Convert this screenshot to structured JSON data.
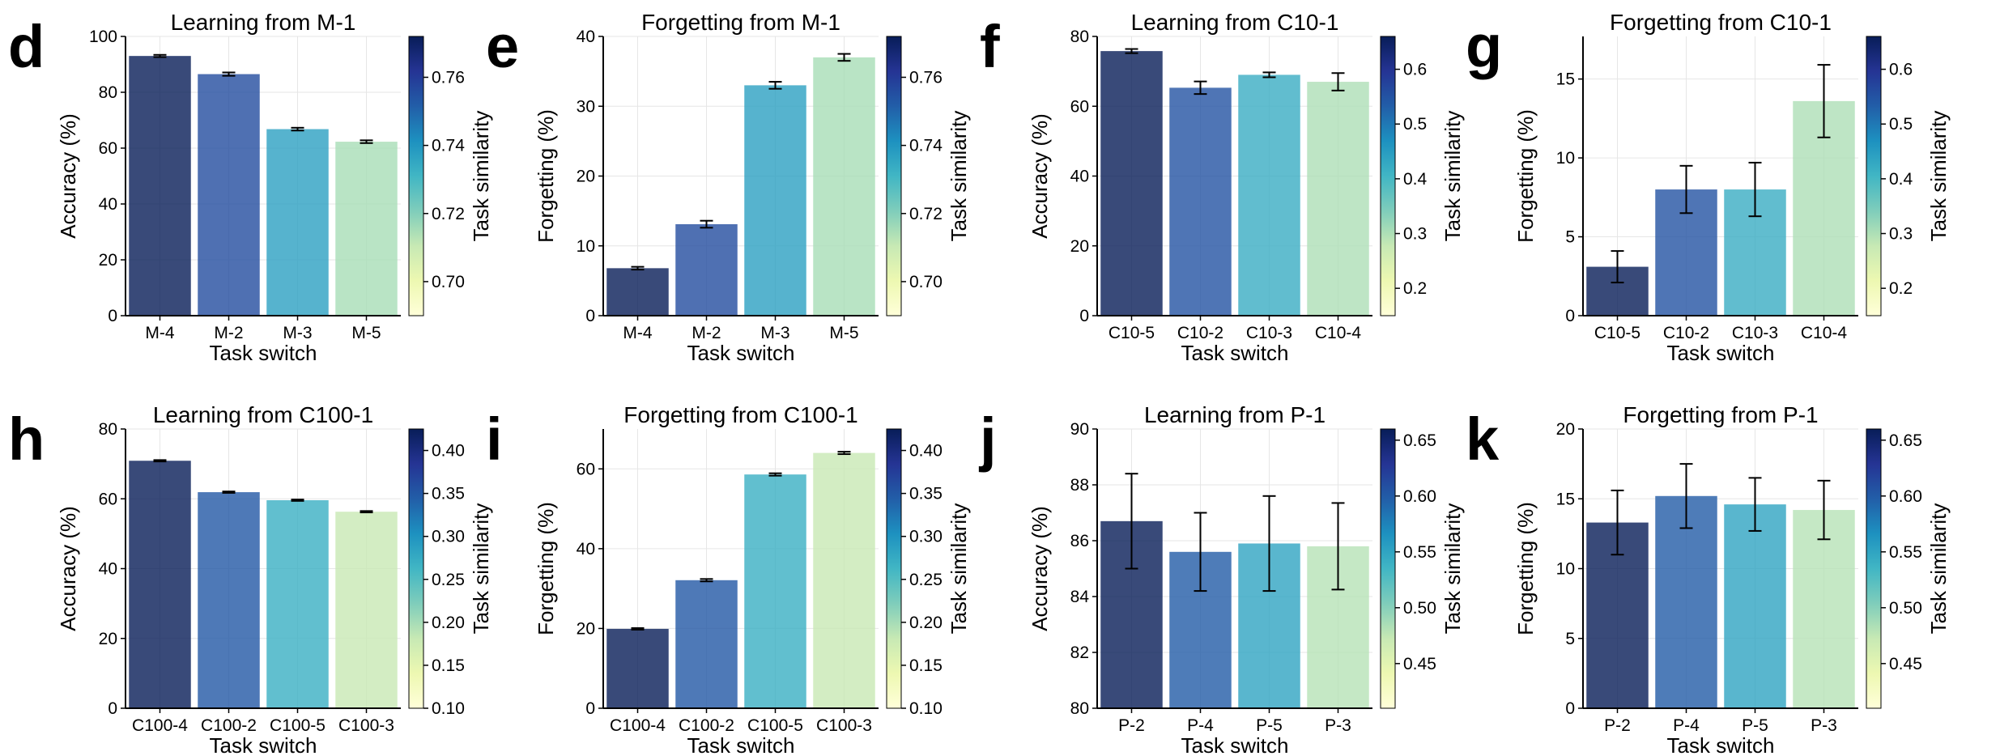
{
  "chart_data": [
    {
      "panel": "d",
      "type": "bar",
      "title": "Learning from M-1",
      "xlabel": "Task switch",
      "ylabel": "Accuracy (%)",
      "categories": [
        "M-4",
        "M-2",
        "M-3",
        "M-5"
      ],
      "values": [
        93,
        86.5,
        66.8,
        62.3
      ],
      "errors": [
        0.4,
        0.6,
        0.5,
        0.5
      ],
      "ylim": [
        0,
        100
      ],
      "yticks": [
        0,
        20,
        40,
        60,
        80,
        100
      ],
      "similarity": [
        0.772,
        0.756,
        0.737,
        0.715
      ],
      "colorbar": {
        "label": "Task similarity",
        "range": [
          0.69,
          0.772
        ],
        "ticks": [
          0.7,
          0.72,
          0.74,
          0.76
        ],
        "tick_labels": [
          "0.70",
          "0.72",
          "0.74",
          "0.76"
        ]
      }
    },
    {
      "panel": "e",
      "type": "bar",
      "title": "Forgetting from M-1",
      "xlabel": "Task switch",
      "ylabel": "Forgetting (%)",
      "categories": [
        "M-4",
        "M-2",
        "M-3",
        "M-5"
      ],
      "values": [
        6.8,
        13.1,
        33.0,
        37.0
      ],
      "errors": [
        0.2,
        0.5,
        0.5,
        0.5
      ],
      "ylim": [
        0,
        40
      ],
      "yticks": [
        0,
        10,
        20,
        30,
        40
      ],
      "similarity": [
        0.772,
        0.756,
        0.737,
        0.715
      ],
      "colorbar": {
        "label": "Task similarity",
        "range": [
          0.69,
          0.772
        ],
        "ticks": [
          0.7,
          0.72,
          0.74,
          0.76
        ],
        "tick_labels": [
          "0.70",
          "0.72",
          "0.74",
          "0.76"
        ]
      }
    },
    {
      "panel": "f",
      "type": "bar",
      "title": "Learning from C10-1",
      "xlabel": "Task switch",
      "ylabel": "Accuracy (%)",
      "categories": [
        "C10-5",
        "C10-2",
        "C10-3",
        "C10-4"
      ],
      "values": [
        75.8,
        65.3,
        69.0,
        67.0
      ],
      "errors": [
        0.6,
        1.8,
        0.7,
        2.5
      ],
      "ylim": [
        0,
        80
      ],
      "yticks": [
        0,
        20,
        40,
        60,
        80
      ],
      "similarity": [
        0.66,
        0.55,
        0.42,
        0.3
      ],
      "colorbar": {
        "label": "Task similarity",
        "range": [
          0.15,
          0.66
        ],
        "ticks": [
          0.2,
          0.3,
          0.4,
          0.5,
          0.6
        ],
        "tick_labels": [
          "0.2",
          "0.3",
          "0.4",
          "0.5",
          "0.6"
        ]
      }
    },
    {
      "panel": "g",
      "type": "bar",
      "title": "Forgetting from C10-1",
      "xlabel": "Task switch",
      "ylabel": "Forgetting (%)",
      "categories": [
        "C10-5",
        "C10-2",
        "C10-3",
        "C10-4"
      ],
      "values": [
        3.1,
        8.0,
        8.0,
        13.6
      ],
      "errors": [
        1.0,
        1.5,
        1.7,
        2.3
      ],
      "ylim": [
        0,
        17.7
      ],
      "yticks": [
        0,
        5,
        10,
        15
      ],
      "similarity": [
        0.66,
        0.55,
        0.42,
        0.3
      ],
      "colorbar": {
        "label": "Task similarity",
        "range": [
          0.15,
          0.66
        ],
        "ticks": [
          0.2,
          0.3,
          0.4,
          0.5,
          0.6
        ],
        "tick_labels": [
          "0.2",
          "0.3",
          "0.4",
          "0.5",
          "0.6"
        ]
      }
    },
    {
      "panel": "h",
      "type": "bar",
      "title": "Learning from C100-1",
      "xlabel": "Task switch",
      "ylabel": "Accuracy (%)",
      "categories": [
        "C100-4",
        "C100-2",
        "C100-5",
        "C100-3"
      ],
      "values": [
        70.9,
        61.9,
        59.6,
        56.3
      ],
      "errors": [
        0.2,
        0.2,
        0.2,
        0.2
      ],
      "ylim": [
        0,
        80
      ],
      "yticks": [
        0,
        20,
        40,
        60,
        80
      ],
      "similarity": [
        0.425,
        0.35,
        0.27,
        0.18
      ],
      "colorbar": {
        "label": "Task similarity",
        "range": [
          0.1,
          0.425
        ],
        "ticks": [
          0.1,
          0.15,
          0.2,
          0.25,
          0.3,
          0.35,
          0.4
        ],
        "tick_labels": [
          "0.10",
          "0.15",
          "0.20",
          "0.25",
          "0.30",
          "0.35",
          "0.40"
        ]
      }
    },
    {
      "panel": "i",
      "type": "bar",
      "title": "Forgetting from C100-1",
      "xlabel": "Task switch",
      "ylabel": "Forgetting (%)",
      "categories": [
        "C100-4",
        "C100-2",
        "C100-5",
        "C100-3"
      ],
      "values": [
        19.9,
        32.1,
        58.6,
        64.0
      ],
      "errors": [
        0.2,
        0.3,
        0.3,
        0.3
      ],
      "ylim": [
        0,
        70
      ],
      "yticks": [
        0,
        20,
        40,
        60
      ],
      "similarity": [
        0.425,
        0.35,
        0.27,
        0.18
      ],
      "colorbar": {
        "label": "Task similarity",
        "range": [
          0.1,
          0.425
        ],
        "ticks": [
          0.1,
          0.15,
          0.2,
          0.25,
          0.3,
          0.35,
          0.4
        ],
        "tick_labels": [
          "0.10",
          "0.15",
          "0.20",
          "0.25",
          "0.30",
          "0.35",
          "0.40"
        ]
      }
    },
    {
      "panel": "j",
      "type": "bar",
      "title": "Learning from P-1",
      "xlabel": "Task switch",
      "ylabel": "Accuracy (%)",
      "categories": [
        "P-2",
        "P-4",
        "P-5",
        "P-3"
      ],
      "values": [
        86.7,
        85.6,
        85.9,
        85.8
      ],
      "errors": [
        1.7,
        1.4,
        1.7,
        1.55
      ],
      "ylim": [
        80,
        90
      ],
      "yticks": [
        80,
        82,
        84,
        86,
        88,
        90
      ],
      "similarity": [
        0.66,
        0.6,
        0.55,
        0.48
      ],
      "colorbar": {
        "label": "Task similarity",
        "range": [
          0.41,
          0.66
        ],
        "ticks": [
          0.45,
          0.5,
          0.55,
          0.6,
          0.65
        ],
        "tick_labels": [
          "0.45",
          "0.50",
          "0.55",
          "0.60",
          "0.65"
        ]
      }
    },
    {
      "panel": "k",
      "type": "bar",
      "title": "Forgetting from P-1",
      "xlabel": "Task switch",
      "ylabel": "Forgetting (%)",
      "categories": [
        "P-2",
        "P-4",
        "P-5",
        "P-3"
      ],
      "values": [
        13.3,
        15.2,
        14.6,
        14.2
      ],
      "errors": [
        2.3,
        2.3,
        1.9,
        2.1
      ],
      "ylim": [
        0,
        20
      ],
      "yticks": [
        0,
        5,
        10,
        15,
        20
      ],
      "similarity": [
        0.66,
        0.6,
        0.55,
        0.48
      ],
      "colorbar": {
        "label": "Task similarity",
        "range": [
          0.41,
          0.66
        ],
        "ticks": [
          0.45,
          0.5,
          0.55,
          0.6,
          0.65
        ],
        "tick_labels": [
          "0.45",
          "0.50",
          "0.55",
          "0.60",
          "0.65"
        ]
      }
    }
  ],
  "colors": {
    "colormap": [
      "#ffffd9",
      "#edf8b1",
      "#c7e9b4",
      "#7fcdbb",
      "#41b6c4",
      "#1d91c0",
      "#225ea8",
      "#253494",
      "#081d58"
    ],
    "bar_alpha": 0.8,
    "axis": "#000000",
    "grid": "#e6e6e6"
  }
}
